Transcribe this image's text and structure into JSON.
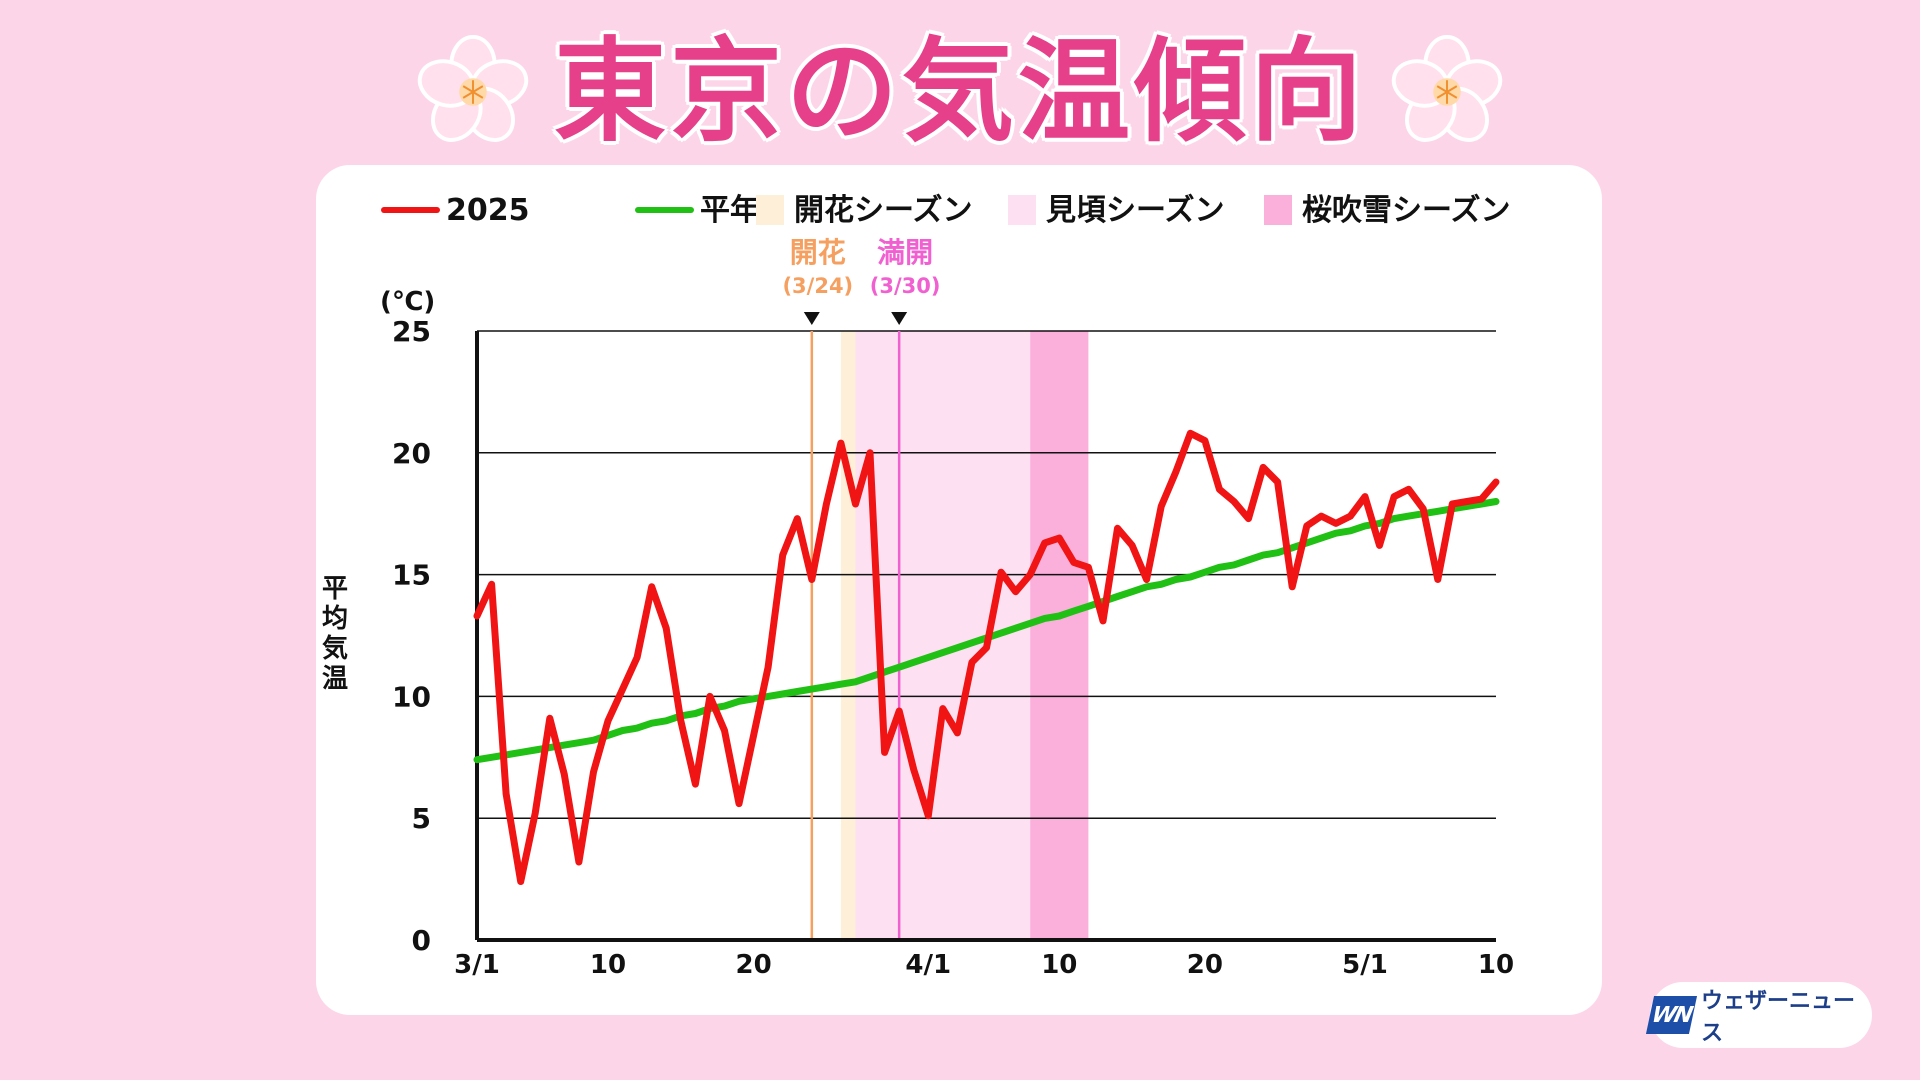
{
  "title": "東京の気温傾向",
  "legend": [
    {
      "label": "2025",
      "kind": "line",
      "color": "#f01414"
    },
    {
      "label": "平年",
      "kind": "line",
      "color": "#20c014"
    },
    {
      "label": "開花シーズン",
      "kind": "box",
      "color": "#fdefd8"
    },
    {
      "label": "見頃シーズン",
      "kind": "box",
      "color": "#fde0f2"
    },
    {
      "label": "桜吹雪シーズン",
      "kind": "box",
      "color": "#fbb0dc"
    }
  ],
  "logo": {
    "mark": "WN",
    "text": "ウェザーニュース"
  },
  "chart_data": {
    "type": "line",
    "unit": "(℃)",
    "ylabel": "平均気温",
    "ylim": [
      0,
      25
    ],
    "yticks": [
      0,
      5,
      10,
      15,
      20,
      25
    ],
    "xlim": [
      0,
      70
    ],
    "xticks": [
      {
        "day": 0,
        "label": "3/1"
      },
      {
        "day": 9,
        "label": "10"
      },
      {
        "day": 19,
        "label": "20"
      },
      {
        "day": 31,
        "label": "4/1"
      },
      {
        "day": 40,
        "label": "10"
      },
      {
        "day": 50,
        "label": "20"
      },
      {
        "day": 61,
        "label": "5/1"
      },
      {
        "day": 70,
        "label": "10"
      }
    ],
    "bands": [
      {
        "name": "開花シーズン",
        "from": 25,
        "to": 26,
        "color": "#fdefd8"
      },
      {
        "name": "見頃シーズン",
        "from": 26,
        "to": 38,
        "color": "#fde0f2"
      },
      {
        "name": "桜吹雪シーズン",
        "from": 38,
        "to": 42,
        "color": "#fbb0dc"
      }
    ],
    "markers": [
      {
        "label": "開花",
        "date": "(3/24)",
        "day": 23,
        "color": "#f5a060"
      },
      {
        "label": "満開",
        "date": "(3/30)",
        "day": 29,
        "color": "#f060d0"
      }
    ],
    "series": [
      {
        "name": "2025",
        "color": "#f01414",
        "values": [
          13.3,
          14.6,
          6.0,
          2.4,
          5.2,
          9.1,
          6.8,
          3.2,
          6.9,
          9.0,
          10.3,
          11.6,
          14.5,
          12.8,
          9.0,
          6.4,
          10.0,
          8.6,
          5.6,
          8.4,
          11.2,
          15.8,
          17.3,
          14.8,
          17.9,
          20.4,
          17.9,
          20.0,
          7.7,
          9.4,
          7.0,
          5.1,
          9.5,
          8.5,
          11.4,
          12.0,
          15.1,
          14.3,
          15.0,
          16.3,
          16.5,
          15.5,
          15.3,
          13.1,
          16.9,
          16.2,
          14.8,
          17.8,
          19.2,
          20.8,
          20.5,
          18.5,
          18.0,
          17.3,
          19.4,
          18.8,
          14.5,
          17.0,
          17.4,
          17.1,
          17.4,
          18.2,
          16.2,
          18.2,
          18.5,
          17.7,
          14.8,
          17.9,
          18.0,
          18.1,
          18.8
        ]
      },
      {
        "name": "平年",
        "color": "#20c014",
        "values": [
          7.4,
          7.5,
          7.6,
          7.7,
          7.8,
          7.9,
          8.0,
          8.1,
          8.2,
          8.4,
          8.6,
          8.7,
          8.9,
          9.0,
          9.2,
          9.3,
          9.5,
          9.6,
          9.8,
          9.9,
          10.0,
          10.1,
          10.2,
          10.3,
          10.4,
          10.5,
          10.6,
          10.8,
          11.0,
          11.2,
          11.4,
          11.6,
          11.8,
          12.0,
          12.2,
          12.4,
          12.6,
          12.8,
          13.0,
          13.2,
          13.3,
          13.5,
          13.7,
          13.9,
          14.1,
          14.3,
          14.5,
          14.6,
          14.8,
          14.9,
          15.1,
          15.3,
          15.4,
          15.6,
          15.8,
          15.9,
          16.1,
          16.3,
          16.5,
          16.7,
          16.8,
          17.0,
          17.1,
          17.3,
          17.4,
          17.5,
          17.6,
          17.7,
          17.8,
          17.9,
          18.0
        ]
      }
    ]
  }
}
